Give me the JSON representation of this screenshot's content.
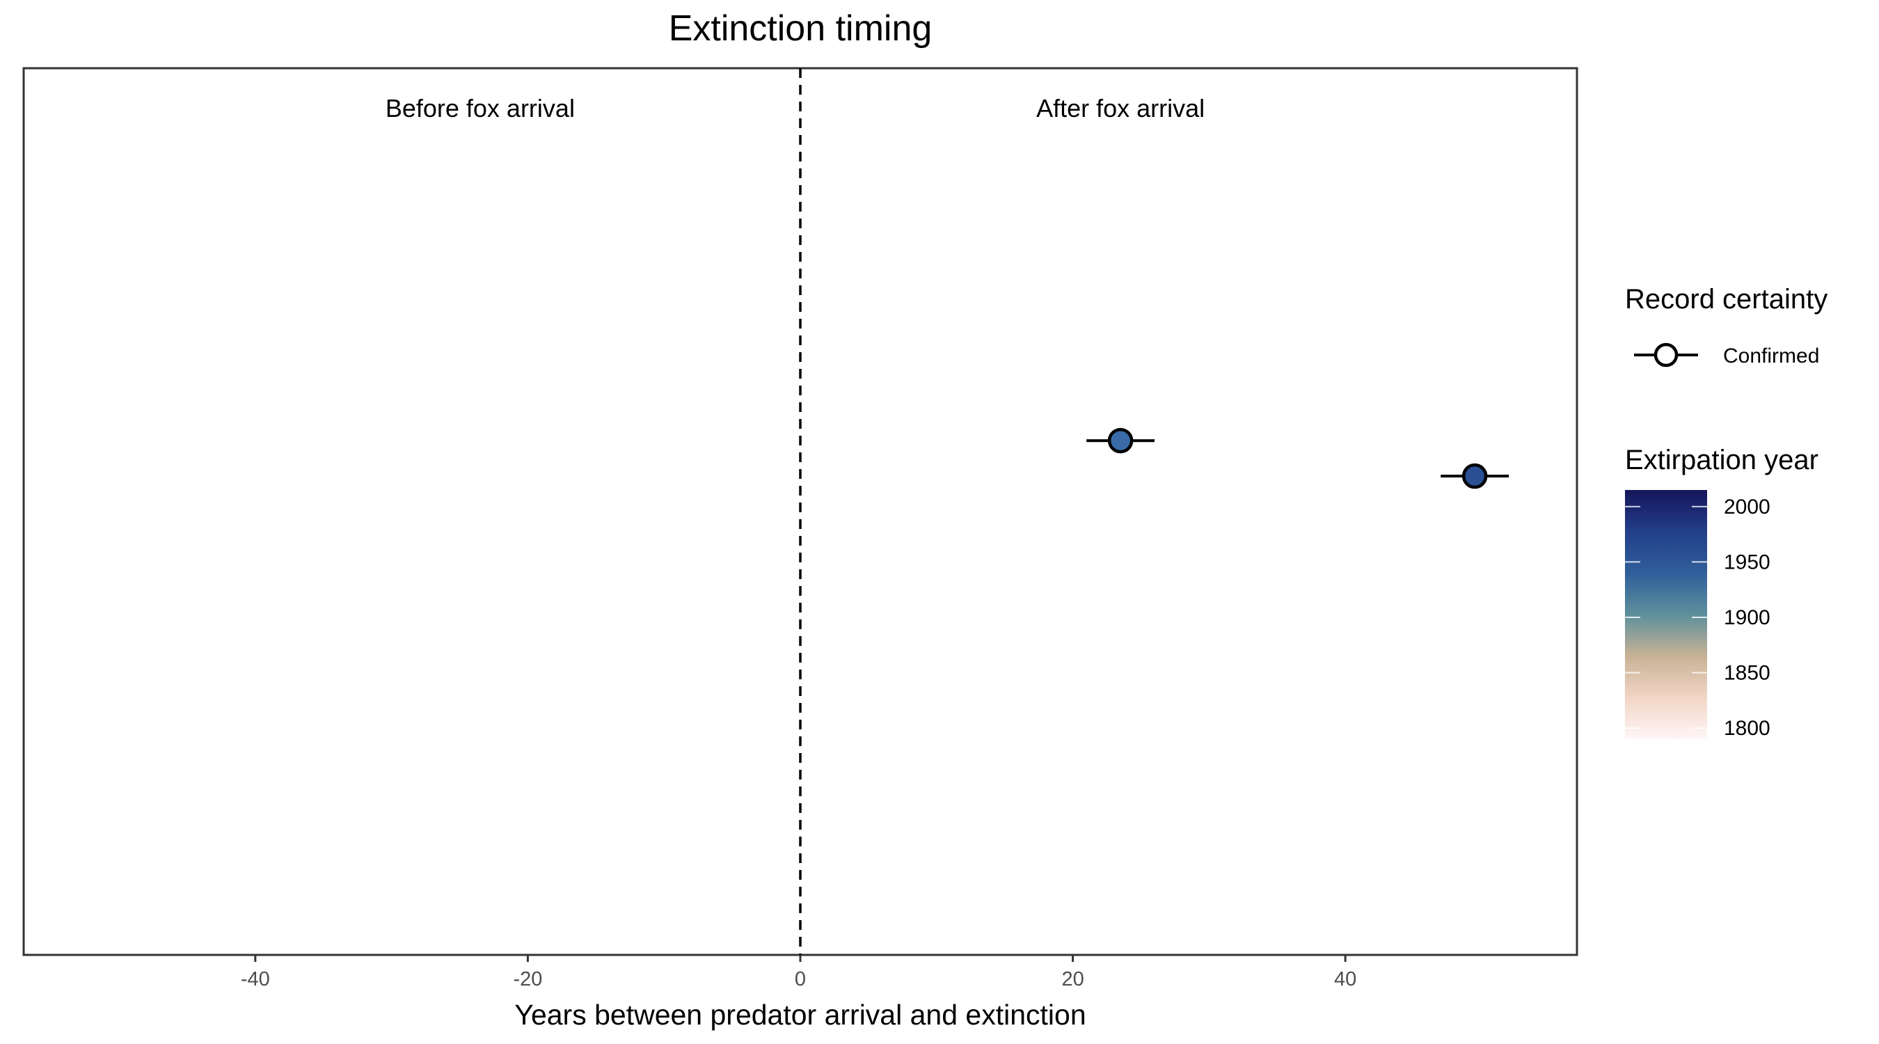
{
  "chart_data": {
    "type": "scatter",
    "title": "Extinction timing",
    "xlabel": "Years between predator arrival and extinction",
    "ylabel": "",
    "xlim": [
      -57,
      57
    ],
    "x_ticks": [
      -40,
      -20,
      0,
      20,
      40
    ],
    "x_tick_labels": [
      "-40",
      "-20",
      "0",
      "20",
      "40"
    ],
    "reference_line": {
      "x": 0,
      "style": "dashed"
    },
    "annotations": [
      {
        "text": "Before fox arrival",
        "x": -23.5
      },
      {
        "text": "After fox arrival",
        "x": 23.5
      }
    ],
    "points": [
      {
        "x": 23.5,
        "x_low": 21.0,
        "x_high": 26.0,
        "row": 0.42,
        "certainty": "Confirmed",
        "extirpation_year": 1925,
        "color": "#3a6ba8"
      },
      {
        "x": 49.5,
        "x_low": 47.0,
        "x_high": 52.0,
        "row": 0.46,
        "certainty": "Confirmed",
        "extirpation_year": 1960,
        "color": "#2a4f94"
      }
    ],
    "grid": false,
    "legend": {
      "position": "right",
      "shape_title": "Record certainty",
      "shape_entries": [
        "Confirmed"
      ],
      "color_title": "Extirpation year",
      "color_range": [
        1790,
        2015
      ],
      "color_ticks": [
        2000,
        1950,
        1900,
        1850,
        1800
      ],
      "color_stops": [
        "#fff6f6",
        "#f2d5c6",
        "#c7b295",
        "#5e8f9c",
        "#2f5f9a",
        "#233f8a",
        "#15155a"
      ]
    }
  }
}
